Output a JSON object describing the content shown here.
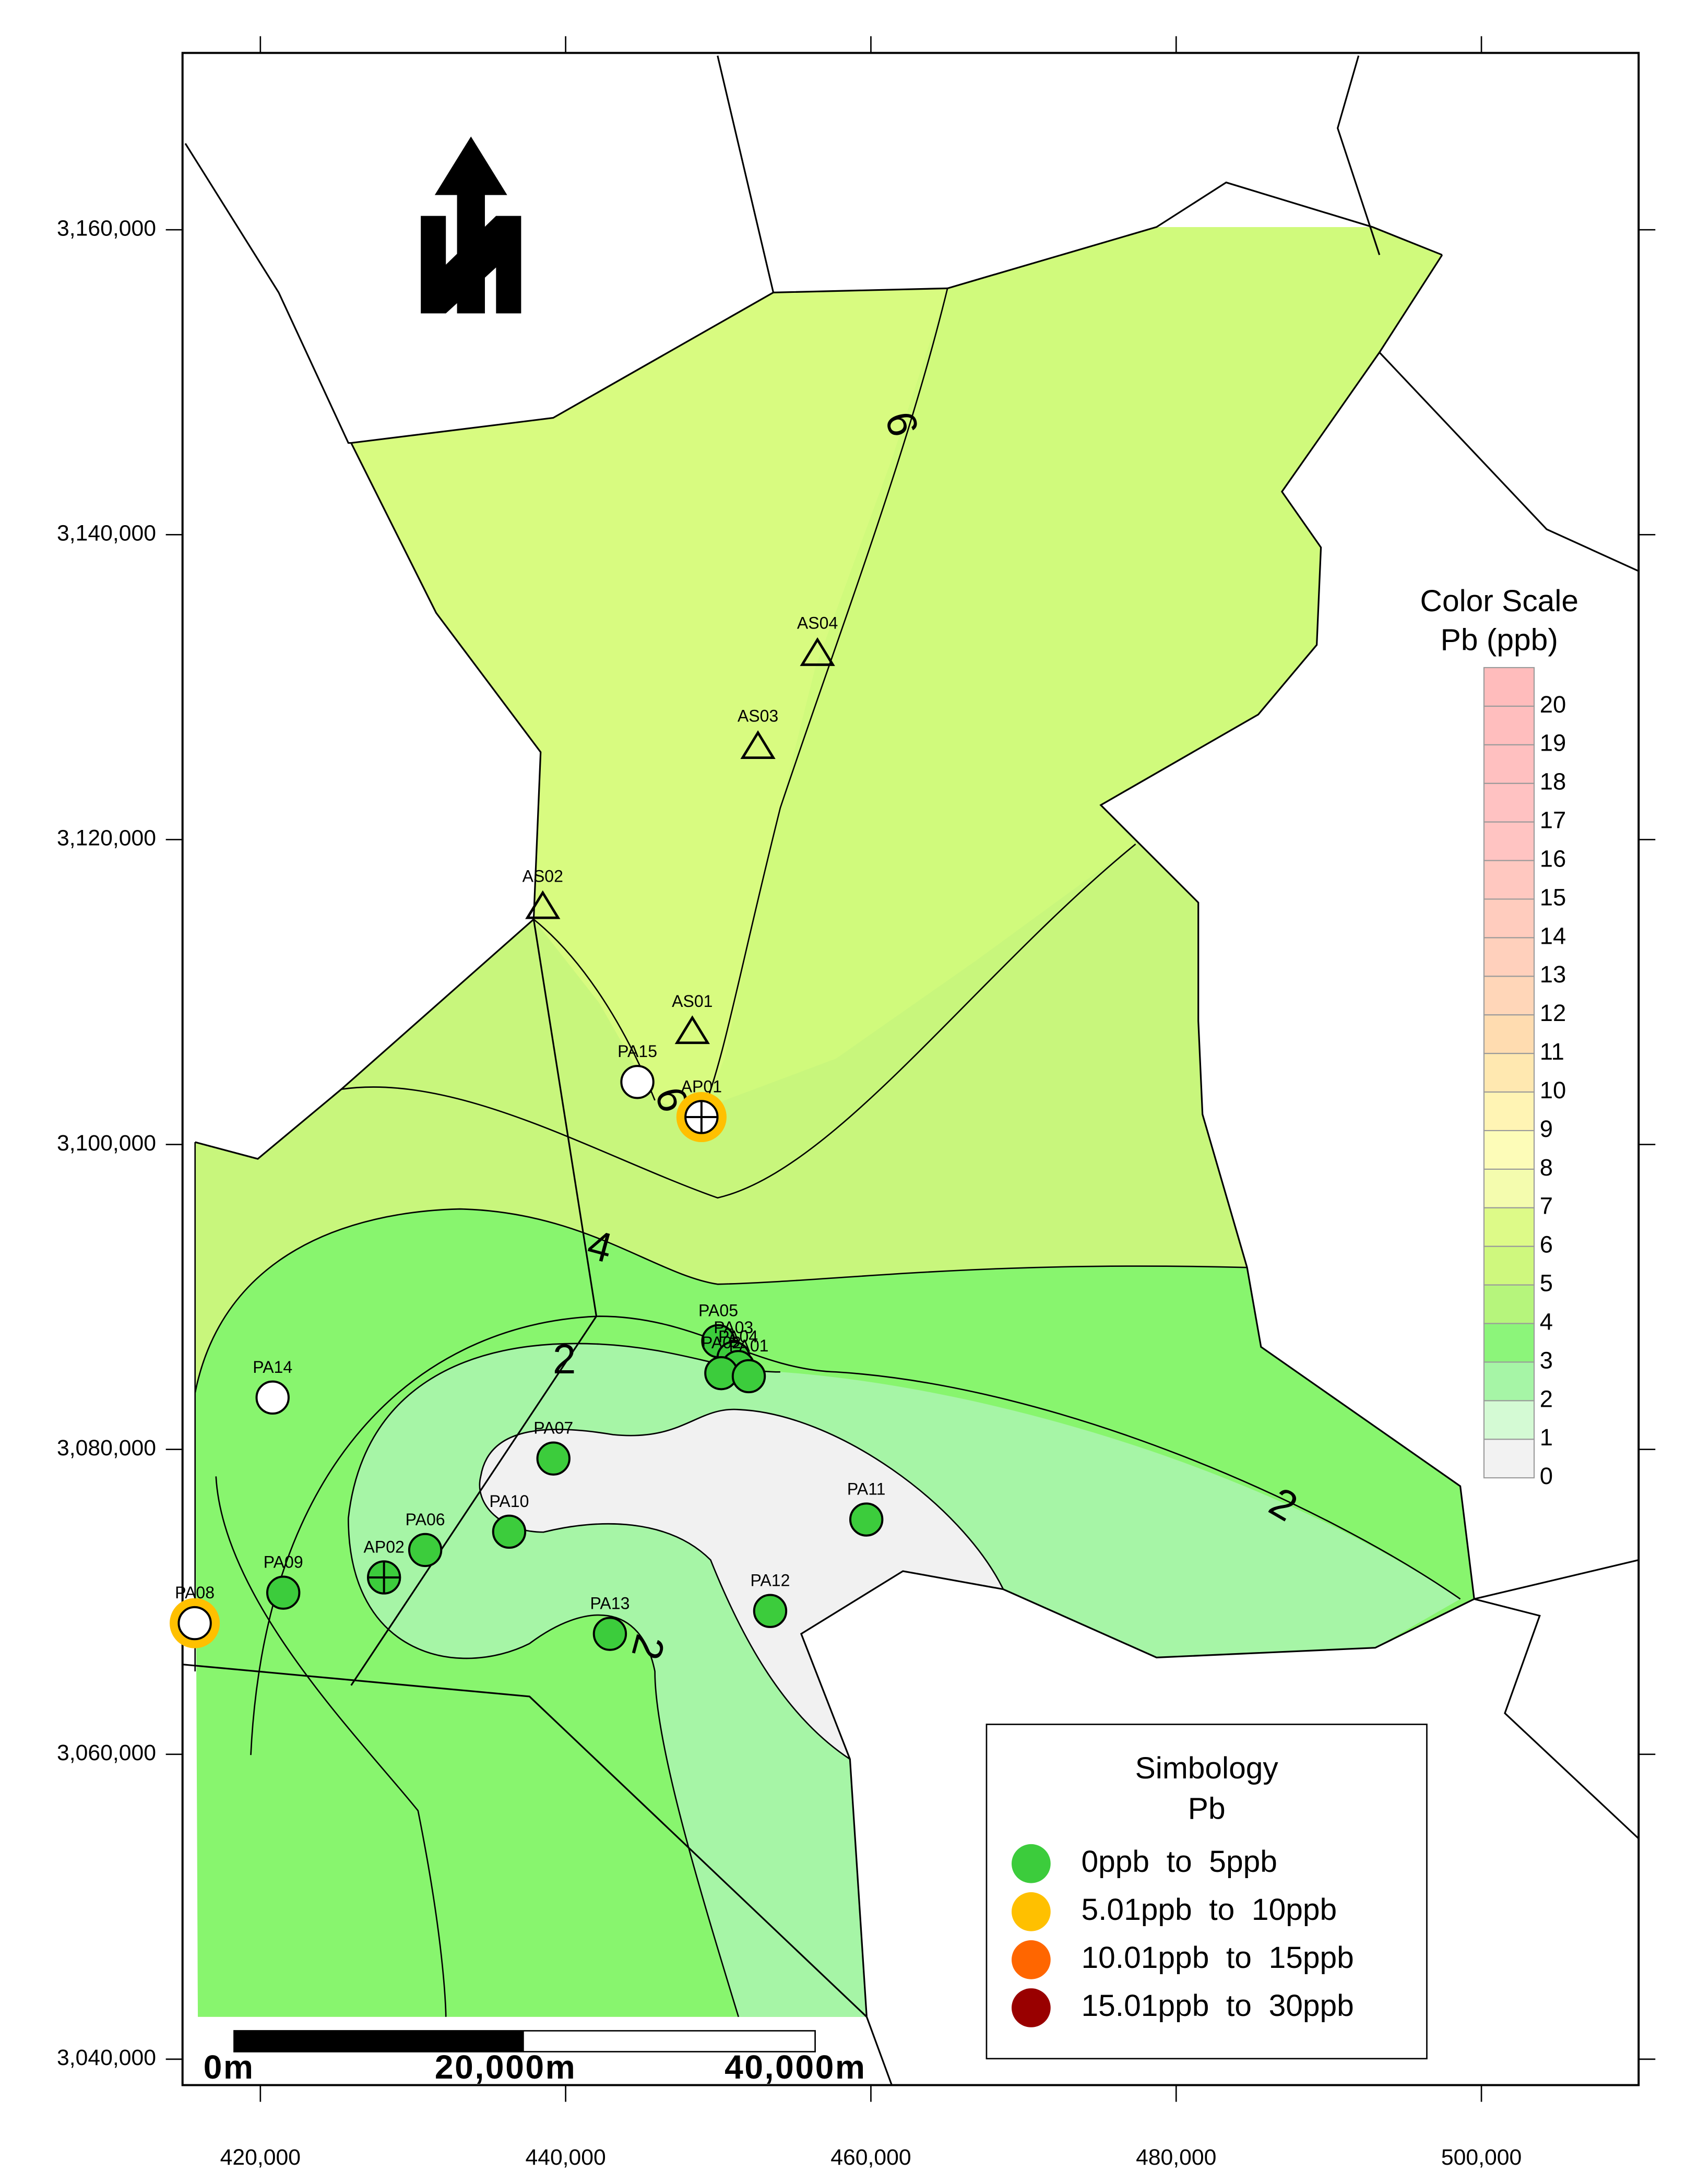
{
  "map": {
    "xlim": [
      414900,
      510300
    ],
    "ylim": [
      3038300,
      3171600
    ],
    "xticks": [
      {
        "value": 420000,
        "label": "420,000"
      },
      {
        "value": 440000,
        "label": "440,000"
      },
      {
        "value": 460000,
        "label": "460,000"
      },
      {
        "value": 480000,
        "label": "480,000"
      },
      {
        "value": 500000,
        "label": "500,000"
      }
    ],
    "yticks": [
      {
        "value": 3040000,
        "label": "3,040,000"
      },
      {
        "value": 3060000,
        "label": "3,060,000"
      },
      {
        "value": 3080000,
        "label": "3,080,000"
      },
      {
        "value": 3100000,
        "label": "3,100,000"
      },
      {
        "value": 3120000,
        "label": "3,120,000"
      },
      {
        "value": 3140000,
        "label": "3,140,000"
      },
      {
        "value": 3160000,
        "label": "3,160,000"
      }
    ],
    "points": [
      {
        "label": "AS04",
        "x": 456500,
        "y": 3132200,
        "symbol": "triangle",
        "fill": "#ffffff"
      },
      {
        "label": "AS03",
        "x": 452600,
        "y": 3126100,
        "symbol": "triangle",
        "fill": "#ffffff"
      },
      {
        "label": "AS02",
        "x": 438500,
        "y": 3115600,
        "symbol": "triangle",
        "fill": "#ffffff"
      },
      {
        "label": "AS01",
        "x": 448300,
        "y": 3107400,
        "symbol": "triangle",
        "fill": "#ffffff"
      },
      {
        "label": "PA15",
        "x": 444700,
        "y": 3104100,
        "symbol": "circle",
        "fill": "#ffffff"
      },
      {
        "label": "AP01",
        "x": 448900,
        "y": 3101800,
        "symbol": "cross",
        "fill": "#ffffff",
        "halo": "#ffc000"
      },
      {
        "label": "PA05",
        "x": 450000,
        "y": 3087100,
        "symbol": "circle",
        "fill": "#3ccc3c"
      },
      {
        "label": "PA03",
        "x": 451000,
        "y": 3086000,
        "symbol": "circle",
        "fill": "#3ccc3c"
      },
      {
        "label": "PA04",
        "x": 451300,
        "y": 3085400,
        "symbol": "circle",
        "fill": "#3ccc3c"
      },
      {
        "label": "PA02",
        "x": 450200,
        "y": 3085000,
        "symbol": "circle",
        "fill": "#3ccc3c"
      },
      {
        "label": "PA01",
        "x": 452000,
        "y": 3084800,
        "symbol": "circle",
        "fill": "#3ccc3c"
      },
      {
        "label": "PA14",
        "x": 420800,
        "y": 3083400,
        "symbol": "circle",
        "fill": "#ffffff"
      },
      {
        "label": "PA07",
        "x": 439200,
        "y": 3079400,
        "symbol": "circle",
        "fill": "#3ccc3c"
      },
      {
        "label": "PA11",
        "x": 459700,
        "y": 3075400,
        "symbol": "circle",
        "fill": "#3ccc3c"
      },
      {
        "label": "PA10",
        "x": 436300,
        "y": 3074600,
        "symbol": "circle",
        "fill": "#3ccc3c"
      },
      {
        "label": "PA06",
        "x": 430800,
        "y": 3073400,
        "symbol": "circle",
        "fill": "#3ccc3c"
      },
      {
        "label": "AP02",
        "x": 428100,
        "y": 3071600,
        "symbol": "cross",
        "fill": "#3ccc3c"
      },
      {
        "label": "PA09",
        "x": 421500,
        "y": 3070600,
        "symbol": "circle",
        "fill": "#3ccc3c"
      },
      {
        "label": "PA08",
        "x": 415700,
        "y": 3068600,
        "symbol": "circle",
        "fill": "#ffffff",
        "halo": "#ffc000"
      },
      {
        "label": "PA12",
        "x": 453400,
        "y": 3069400,
        "symbol": "circle",
        "fill": "#3ccc3c"
      },
      {
        "label": "PA13",
        "x": 442900,
        "y": 3067900,
        "symbol": "circle",
        "fill": "#3ccc3c"
      }
    ],
    "contour_labels": [
      "6",
      "6",
      "4",
      "2",
      "2",
      "2"
    ],
    "color_scale": {
      "title": "Color Scale",
      "subtitle": "Pb (ppb)",
      "levels": [
        0,
        1,
        2,
        3,
        4,
        5,
        6,
        7,
        8,
        9,
        10,
        11,
        12,
        13,
        14,
        15,
        16,
        17,
        18,
        19,
        20
      ],
      "colors": [
        "#f2f2f2",
        "#d4fad4",
        "#a6f5a6",
        "#8cf57a",
        "#b6f57c",
        "#cff87e",
        "#ddfa88",
        "#f4fcae",
        "#fdfcb8",
        "#fff4b4",
        "#ffe8b0",
        "#ffdcb0",
        "#ffd6b8",
        "#ffd0bc",
        "#ffccbe",
        "#ffc8c0",
        "#ffc4c2",
        "#ffc2c2",
        "#ffc0c0",
        "#ffbebe",
        "#ffbcbc"
      ]
    },
    "legend": {
      "title": "Simbology",
      "subtitle": "Pb",
      "entries": [
        {
          "label": "0ppb  to  5ppb",
          "color": "#3ccc3c"
        },
        {
          "label": "5.01ppb  to  10ppb",
          "color": "#ffc000"
        },
        {
          "label": "10.01ppb  to  15ppb",
          "color": "#ff6600"
        },
        {
          "label": "15.01ppb  to  30ppb",
          "color": "#990000"
        }
      ]
    },
    "scale_bar": [
      "0m",
      "20,000m",
      "40,000m"
    ]
  }
}
